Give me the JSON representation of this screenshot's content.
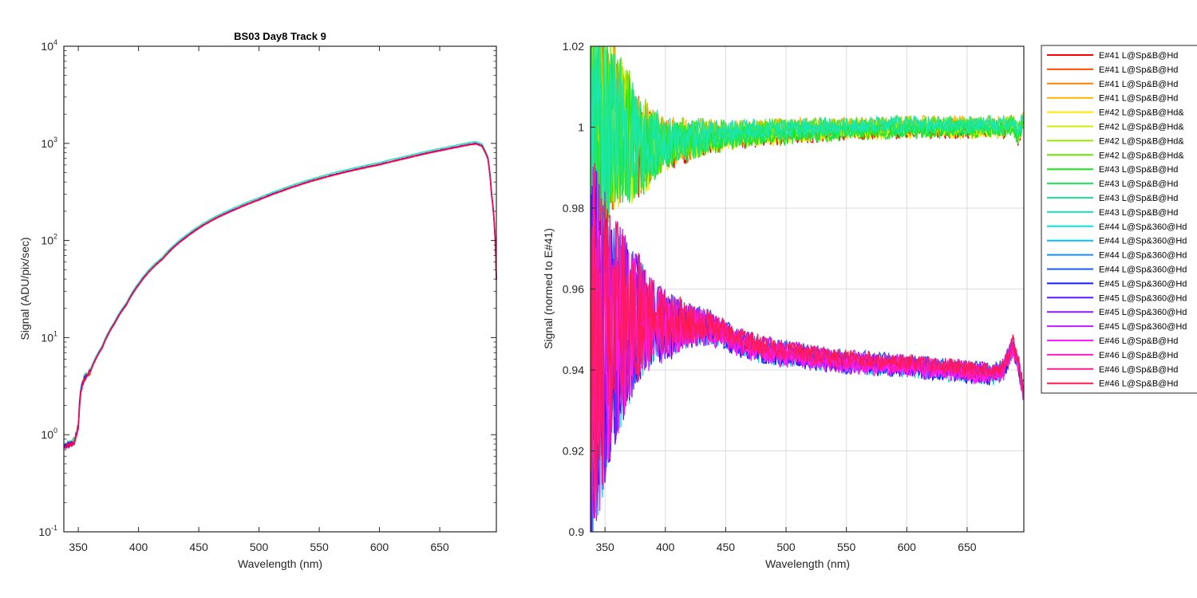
{
  "chart_data": [
    {
      "type": "line",
      "title": "BS03 Day8 Track 9",
      "xlabel": "Wavelength (nm)",
      "ylabel": "Signal (ADU/pix/sec)",
      "yscale": "log",
      "xlim": [
        338,
        697
      ],
      "ylim": [
        0.1,
        10000
      ],
      "grid": false,
      "x_ticks": [
        350,
        400,
        450,
        500,
        550,
        600,
        650
      ],
      "x_tick_labels": [
        "350",
        "400",
        "450",
        "500",
        "550",
        "600",
        "650"
      ],
      "y_ticks": [
        {
          "base": "10",
          "exp": "-1",
          "value": 0.1
        },
        {
          "base": "10",
          "exp": "0",
          "value": 1
        },
        {
          "base": "10",
          "exp": "1",
          "value": 10
        },
        {
          "base": "10",
          "exp": "2",
          "value": 100
        },
        {
          "base": "10",
          "exp": "3",
          "value": 1000
        },
        {
          "base": "10",
          "exp": "4",
          "value": 10000
        }
      ],
      "curve": {
        "x": [
          338,
          343,
          347,
          350,
          352,
          355,
          360,
          370,
          380,
          390,
          400,
          420,
          440,
          460,
          480,
          500,
          520,
          540,
          560,
          580,
          600,
          620,
          640,
          660,
          675,
          680,
          685,
          690,
          693,
          697
        ],
        "y": [
          0.75,
          0.8,
          0.85,
          1.2,
          2.8,
          3.8,
          4.5,
          8,
          14,
          22,
          35,
          65,
          110,
          160,
          210,
          265,
          330,
          400,
          470,
          540,
          610,
          700,
          800,
          900,
          980,
          1000,
          950,
          700,
          300,
          40
        ]
      },
      "series": [
        {
          "name": "E#41 L@Sp&B@Hd",
          "scale": 0.985,
          "color": "#ff3300"
        },
        {
          "name": "E#43 L@Sp&B@Hd",
          "scale": 1.04,
          "color": "#33e6a6"
        },
        {
          "name": "E#45 L@Sp&360@Hd",
          "scale": 1.0,
          "color": "#3d1aff"
        },
        {
          "name": "E#46 L@Sp&B@Hd",
          "scale": 0.99,
          "color": "#ff0055"
        }
      ]
    },
    {
      "type": "line",
      "title": "",
      "xlabel": "Wavelength (nm)",
      "ylabel": "Signal (normed to E#41)",
      "xlim": [
        338,
        697
      ],
      "ylim": [
        0.9,
        1.02
      ],
      "grid": true,
      "x_ticks": [
        350,
        400,
        450,
        500,
        550,
        600,
        650
      ],
      "x_tick_labels": [
        "350",
        "400",
        "450",
        "500",
        "550",
        "600",
        "650"
      ],
      "y_ticks": [
        0.9,
        0.92,
        0.94,
        0.96,
        0.98,
        1.0,
        1.02
      ],
      "y_tick_labels": [
        "0.9",
        "0.92",
        "0.94",
        "0.96",
        "0.98",
        "1",
        "1.02"
      ],
      "groups": [
        {
          "name": "upper",
          "baseline": {
            "x": [
              340,
              360,
              380,
              400,
              450,
              500,
              550,
              600,
              650,
              680,
              688,
              692,
              697
            ],
            "y": [
              1.0,
              1.0,
              0.995,
              0.996,
              0.998,
              0.999,
              0.9995,
              1.0,
              1.0,
              1.0,
              1.001,
              0.998,
              1.002
            ]
          },
          "noise": {
            "x": [
              338,
              360,
              380,
              400,
              450,
              500,
              550,
              600,
              650,
              697
            ],
            "y": [
              0.03,
              0.02,
              0.012,
              0.006,
              0.003,
              0.0025,
              0.002,
              0.002,
              0.002,
              0.002
            ]
          }
        },
        {
          "name": "lower",
          "baseline": {
            "x": [
              340,
              360,
              380,
              400,
              420,
              440,
              460,
              480,
              500,
              550,
              600,
              650,
              670,
              680,
              688,
              692,
              697
            ],
            "y": [
              0.945,
              0.95,
              0.953,
              0.951,
              0.951,
              0.95,
              0.947,
              0.945,
              0.944,
              0.942,
              0.941,
              0.9395,
              0.939,
              0.94,
              0.946,
              0.942,
              0.934
            ]
          },
          "noise": {
            "x": [
              338,
              355,
              370,
              390,
              420,
              450,
              500,
              550,
              600,
              697
            ],
            "y": [
              0.05,
              0.03,
              0.02,
              0.01,
              0.005,
              0.003,
              0.0025,
              0.0022,
              0.002,
              0.002
            ]
          }
        }
      ],
      "series": [
        {
          "name": "E#41 L@Sp&B@Hd",
          "group": "upper",
          "color": "#ff0000"
        },
        {
          "name": "E#41 L@Sp&B@Hd",
          "group": "upper",
          "color": "#ff4d00"
        },
        {
          "name": "E#41 L@Sp&B@Hd",
          "group": "upper",
          "color": "#ff8000"
        },
        {
          "name": "E#41 L@Sp&B@Hd",
          "group": "upper",
          "color": "#ffb300"
        },
        {
          "name": "E#42 L@Sp&B@Hd&",
          "group": "upper",
          "color": "#ffe600"
        },
        {
          "name": "E#42 L@Sp&B@Hd&",
          "group": "upper",
          "color": "#ccf000"
        },
        {
          "name": "E#42 L@Sp&B@Hd&",
          "group": "upper",
          "color": "#99e600"
        },
        {
          "name": "E#42 L@Sp&B@Hd&",
          "group": "upper",
          "color": "#66e600"
        },
        {
          "name": "E#43 L@Sp&B@Hd",
          "group": "upper",
          "color": "#1ae61a"
        },
        {
          "name": "E#43 L@Sp&B@Hd",
          "group": "upper",
          "color": "#1ae655"
        },
        {
          "name": "E#43 L@Sp&B@Hd",
          "group": "upper",
          "color": "#1ae68c"
        },
        {
          "name": "E#43 L@Sp&B@Hd",
          "group": "upper",
          "color": "#1ae6b3"
        },
        {
          "name": "E#44 L@Sp&360@Hd",
          "group": "lower",
          "color": "#00e6e6"
        },
        {
          "name": "E#44 L@Sp&360@Hd",
          "group": "lower",
          "color": "#00bfff"
        },
        {
          "name": "E#44 L@Sp&360@Hd",
          "group": "lower",
          "color": "#1a8cff"
        },
        {
          "name": "E#44 L@Sp&360@Hd",
          "group": "lower",
          "color": "#1a5cff"
        },
        {
          "name": "E#45 L@Sp&360@Hd",
          "group": "lower",
          "color": "#1a1aff"
        },
        {
          "name": "E#45 L@Sp&360@Hd",
          "group": "lower",
          "color": "#5c1aff"
        },
        {
          "name": "E#45 L@Sp&360@Hd",
          "group": "lower",
          "color": "#8c1aff"
        },
        {
          "name": "E#45 L@Sp&360@Hd",
          "group": "lower",
          "color": "#c21aff"
        },
        {
          "name": "E#46 L@Sp&B@Hd",
          "group": "lower",
          "color": "#ff1aff"
        },
        {
          "name": "E#46 L@Sp&B@Hd",
          "group": "lower",
          "color": "#ff1ad9"
        },
        {
          "name": "E#46 L@Sp&B@Hd",
          "group": "lower",
          "color": "#ff1a8c"
        },
        {
          "name": "E#46 L@Sp&B@Hd",
          "group": "lower",
          "color": "#ff1a4d"
        }
      ]
    }
  ]
}
